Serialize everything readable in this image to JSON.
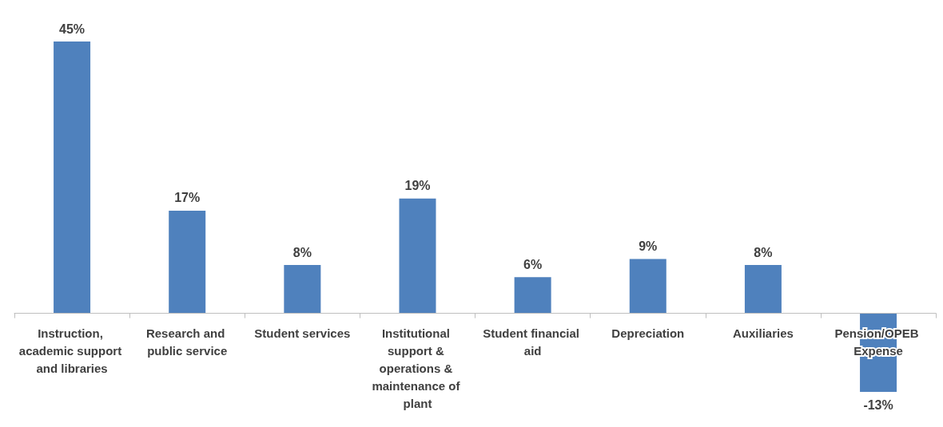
{
  "chart_data": {
    "type": "bar",
    "categories": [
      "Instruction, academic support and libraries",
      "Research and public service",
      "Student services",
      "Institutional support & operations & maintenance of plant",
      "Student financial aid",
      "Depreciation",
      "Auxiliaries",
      "Pension/OPEB Expense"
    ],
    "values": [
      45,
      17,
      8,
      19,
      6,
      9,
      8,
      -13
    ],
    "color": "#4f81bd",
    "value_labels": [
      "45%",
      "17%",
      "8%",
      "19%",
      "6%",
      "9%",
      "8%",
      "-13%"
    ],
    "grid": false
  }
}
